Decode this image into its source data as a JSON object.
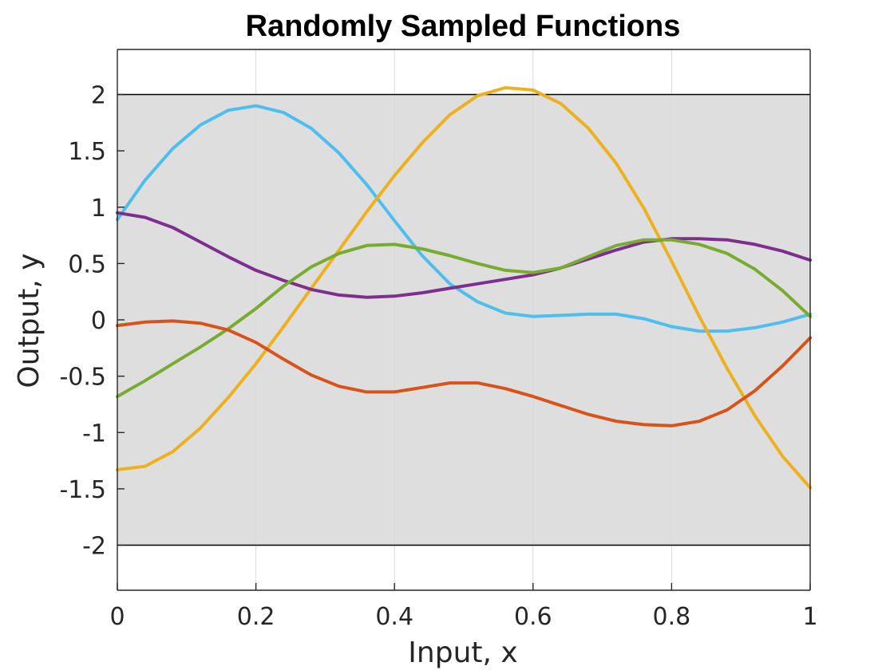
{
  "chart_data": {
    "type": "line",
    "title": "Randomly Sampled Functions",
    "xlabel": "Input, x",
    "ylabel": "Output, y",
    "xlim": [
      0,
      1
    ],
    "ylim": [
      -2.4,
      2.4
    ],
    "grid": true,
    "legend": "none",
    "xticks": [
      0,
      0.2,
      0.4,
      0.6,
      0.8,
      1
    ],
    "xtick_labels": [
      "0",
      "0.2",
      "0.4",
      "0.6",
      "0.8",
      "1"
    ],
    "yticks": [
      -2,
      -1.5,
      -1,
      -0.5,
      0,
      0.5,
      1,
      1.5,
      2
    ],
    "ytick_labels": [
      "-2",
      "-1.5",
      "-1",
      "-0.5",
      "0",
      "0.5",
      "1",
      "1.5",
      "2"
    ],
    "band": {
      "y_range": [
        -2,
        2
      ],
      "color": "#dedede"
    },
    "x": [
      0,
      0.04,
      0.08,
      0.12,
      0.16,
      0.2,
      0.24,
      0.28,
      0.32,
      0.36,
      0.4,
      0.44,
      0.48,
      0.52,
      0.56,
      0.6,
      0.64,
      0.68,
      0.72,
      0.76,
      0.8,
      0.84,
      0.88,
      0.92,
      0.96,
      1.0
    ],
    "series": [
      {
        "color": "#4DBEEE",
        "values": [
          0.89,
          1.24,
          1.52,
          1.73,
          1.86,
          1.9,
          1.84,
          1.7,
          1.48,
          1.2,
          0.88,
          0.57,
          0.32,
          0.16,
          0.06,
          0.03,
          0.04,
          0.05,
          0.05,
          0.01,
          -0.06,
          -0.1,
          -0.1,
          -0.07,
          -0.02,
          0.05
        ]
      },
      {
        "color": "#EDB120",
        "values": [
          -1.33,
          -1.3,
          -1.17,
          -0.96,
          -0.69,
          -0.39,
          -0.06,
          0.28,
          0.62,
          0.96,
          1.28,
          1.57,
          1.82,
          1.99,
          2.06,
          2.04,
          1.92,
          1.7,
          1.39,
          0.99,
          0.52,
          0.03,
          -0.43,
          -0.85,
          -1.21,
          -1.49
        ]
      },
      {
        "color": "#7E2F8E",
        "values": [
          0.95,
          0.91,
          0.82,
          0.69,
          0.56,
          0.44,
          0.35,
          0.27,
          0.22,
          0.2,
          0.21,
          0.24,
          0.28,
          0.32,
          0.36,
          0.4,
          0.46,
          0.54,
          0.62,
          0.69,
          0.72,
          0.72,
          0.71,
          0.67,
          0.61,
          0.53
        ]
      },
      {
        "color": "#77AC30",
        "values": [
          -0.68,
          -0.54,
          -0.39,
          -0.24,
          -0.08,
          0.1,
          0.3,
          0.47,
          0.59,
          0.66,
          0.67,
          0.63,
          0.57,
          0.5,
          0.44,
          0.42,
          0.46,
          0.56,
          0.66,
          0.71,
          0.71,
          0.67,
          0.59,
          0.45,
          0.26,
          0.03
        ]
      },
      {
        "color": "#D95319",
        "values": [
          -0.05,
          -0.02,
          -0.01,
          -0.03,
          -0.09,
          -0.2,
          -0.35,
          -0.49,
          -0.59,
          -0.64,
          -0.64,
          -0.6,
          -0.56,
          -0.56,
          -0.61,
          -0.68,
          -0.76,
          -0.84,
          -0.9,
          -0.93,
          -0.94,
          -0.9,
          -0.8,
          -0.63,
          -0.41,
          -0.16
        ]
      }
    ]
  }
}
